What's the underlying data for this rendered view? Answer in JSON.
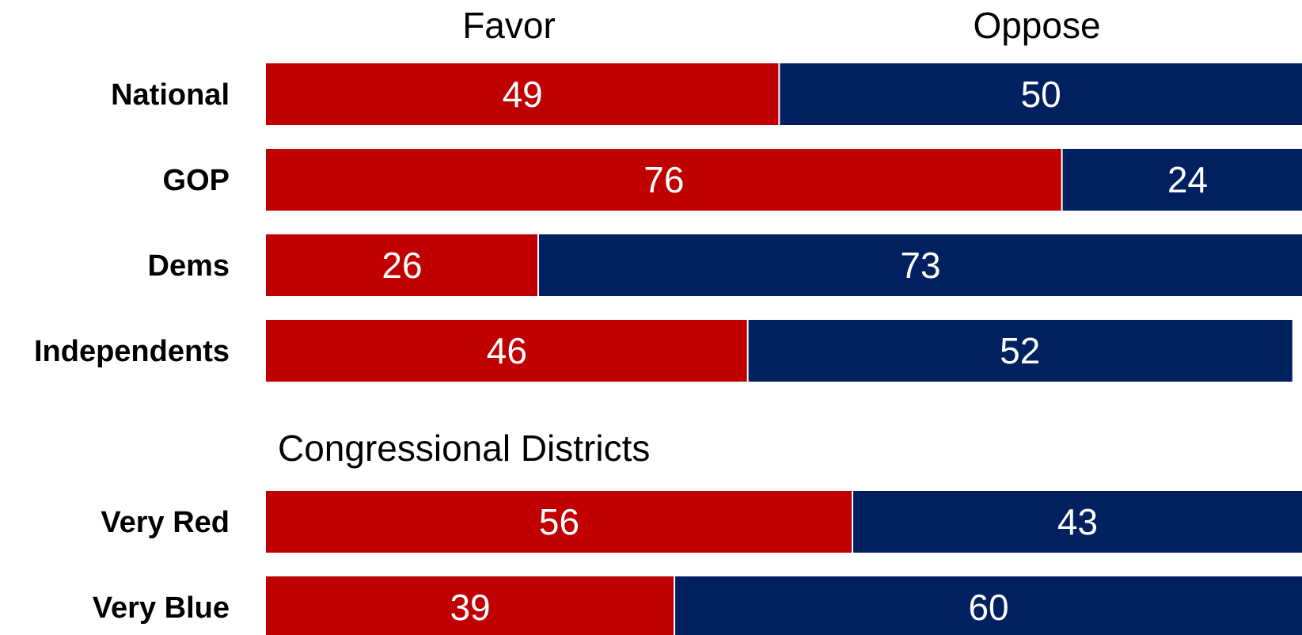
{
  "chart_data": {
    "type": "bar",
    "orientation": "horizontal",
    "stacked": true,
    "column_headers": [
      "Favor",
      "Oppose"
    ],
    "section_label": "Congressional Districts",
    "categories": [
      "National",
      "GOP",
      "Dems",
      "Independents",
      "Very Red",
      "Very Blue"
    ],
    "series": [
      {
        "name": "Favor",
        "color": "#c00000",
        "values": [
          49,
          76,
          26,
          46,
          56,
          39
        ]
      },
      {
        "name": "Oppose",
        "color": "#002060",
        "values": [
          50,
          24,
          73,
          52,
          43,
          60
        ]
      }
    ],
    "xlim": [
      0,
      99
    ],
    "grid": false,
    "legend": "none"
  }
}
